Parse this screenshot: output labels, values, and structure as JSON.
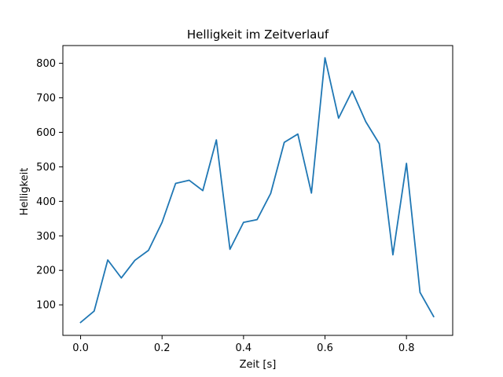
{
  "chart_data": {
    "type": "line",
    "title": "Helligkeit im Zeitverlauf",
    "xlabel": "Zeit [s]",
    "ylabel": "Helligkeit",
    "xlim": [
      -0.0435,
      0.9135
    ],
    "ylim": [
      11.5,
      851.5
    ],
    "xticks": [
      0.0,
      0.2,
      0.4,
      0.6,
      0.8
    ],
    "xtick_labels": [
      "0.0",
      "0.2",
      "0.4",
      "0.6",
      "0.8"
    ],
    "yticks": [
      100,
      200,
      300,
      400,
      500,
      600,
      700,
      800
    ],
    "ytick_labels": [
      "100",
      "200",
      "300",
      "400",
      "500",
      "600",
      "700",
      "800"
    ],
    "grid": false,
    "legend": "none",
    "series": [
      {
        "color": "#1f77b4",
        "x": [
          0.0,
          0.0333,
          0.0667,
          0.1,
          0.1333,
          0.1667,
          0.2,
          0.2333,
          0.2667,
          0.3,
          0.3333,
          0.3667,
          0.4,
          0.4333,
          0.4667,
          0.5,
          0.5333,
          0.5667,
          0.6,
          0.6333,
          0.6667,
          0.7,
          0.7333,
          0.7667,
          0.8,
          0.8333,
          0.8667
        ],
        "y": [
          49,
          82,
          230,
          178,
          229,
          258,
          339,
          452,
          461,
          431,
          578,
          261,
          339,
          347,
          423,
          571,
          595,
          424,
          816,
          641,
          720,
          631,
          567,
          245,
          510,
          136,
          66
        ]
      }
    ]
  }
}
